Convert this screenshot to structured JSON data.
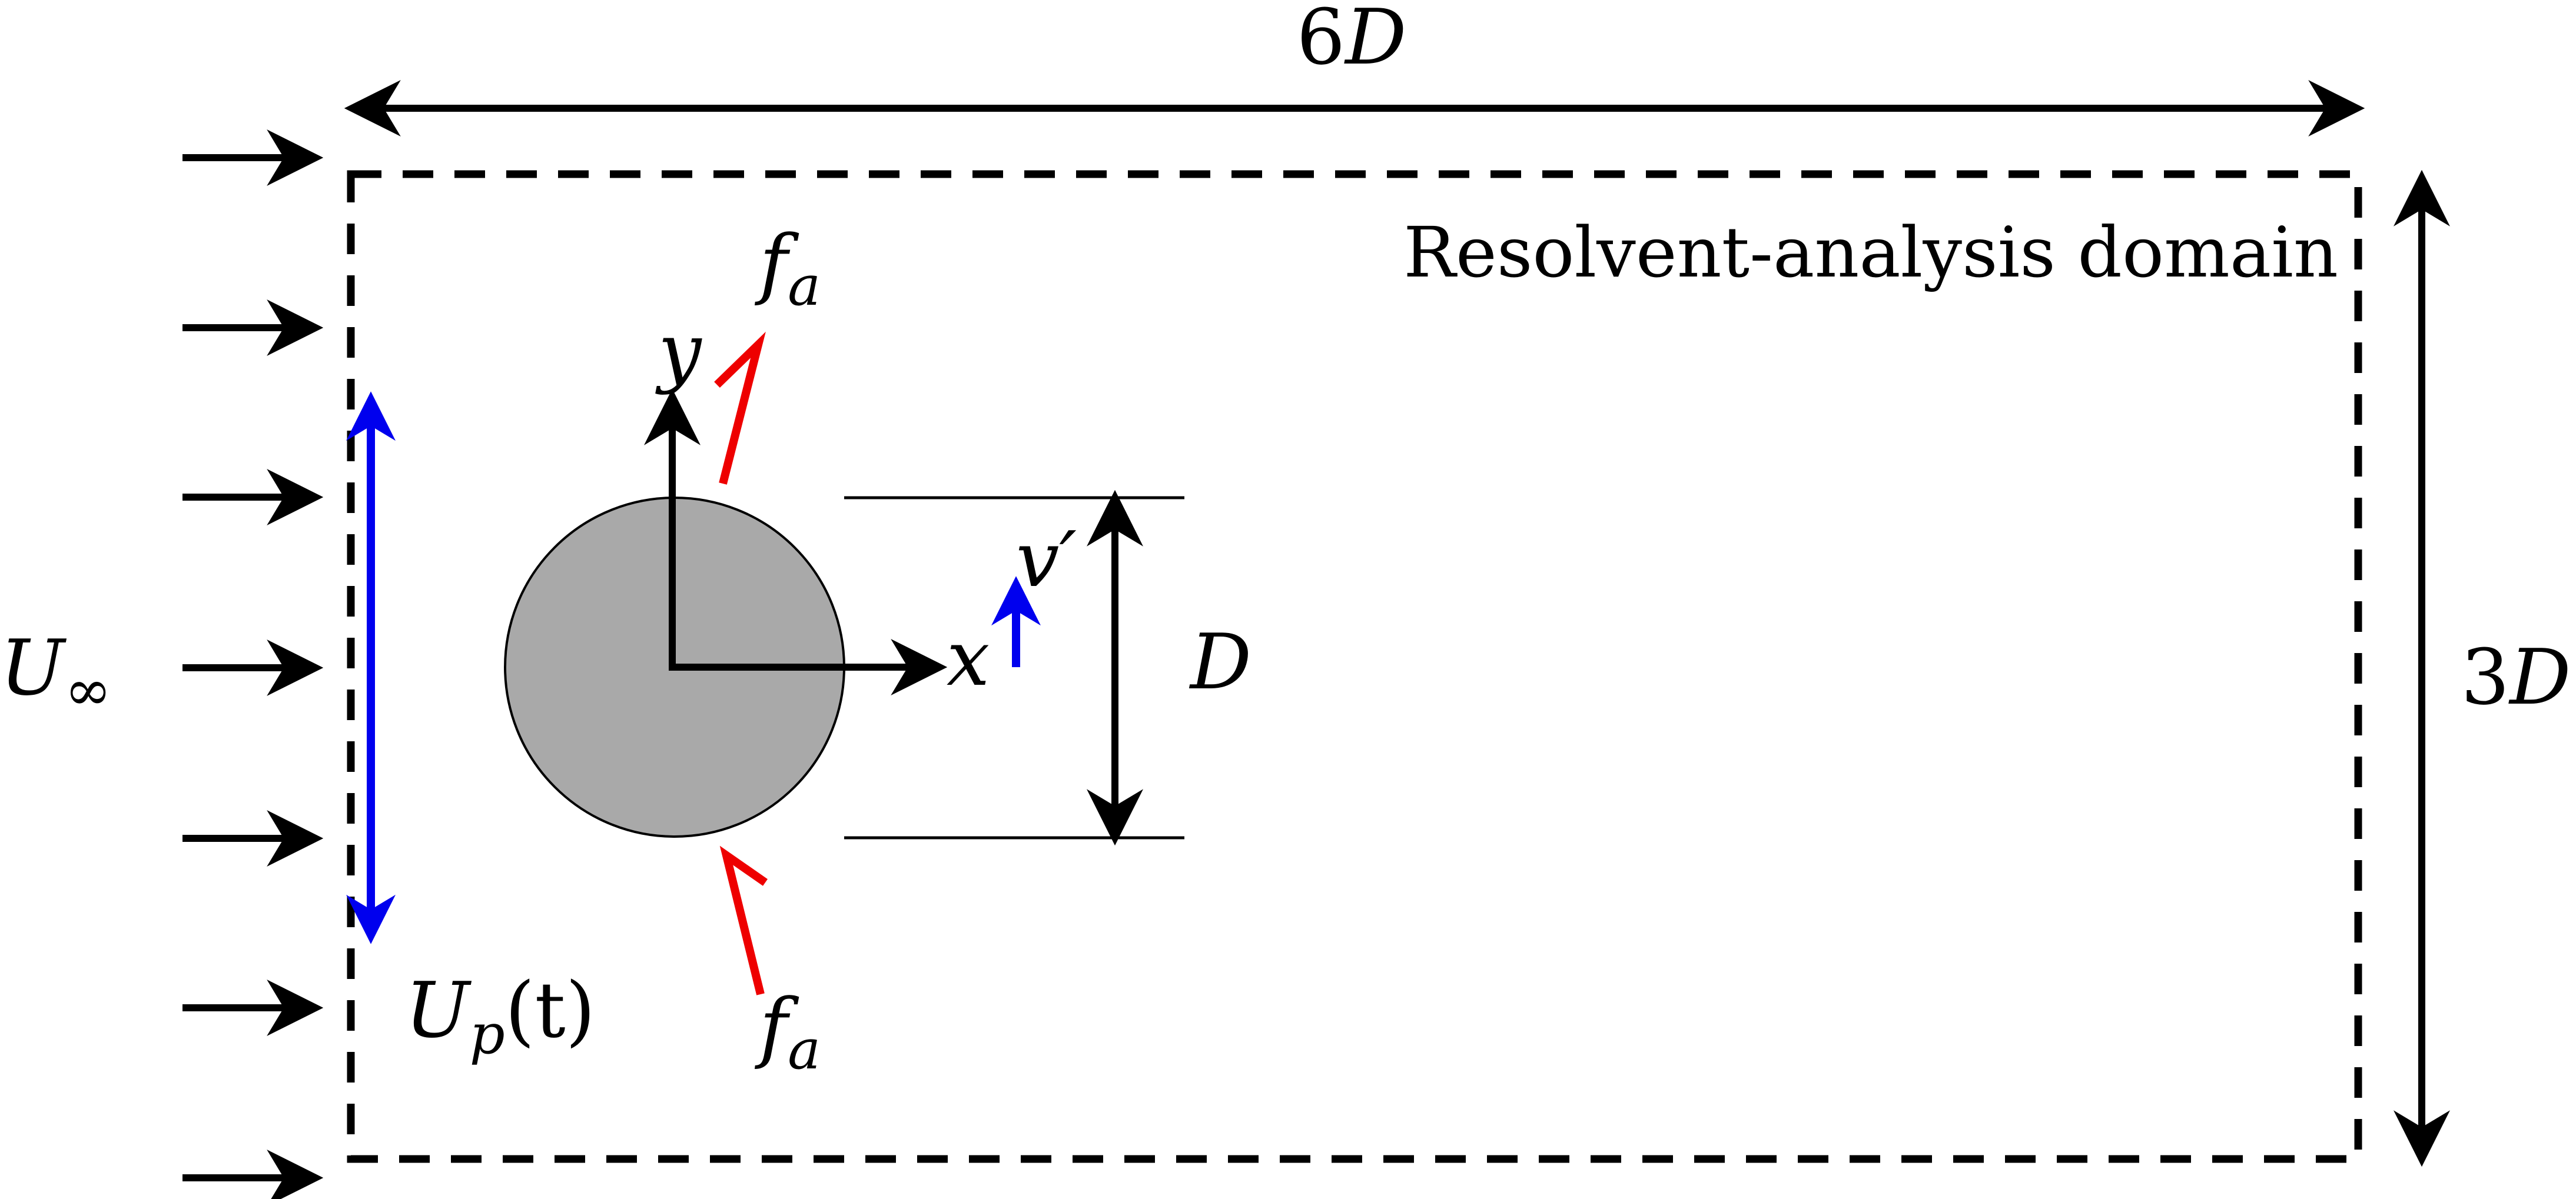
{
  "diagram": {
    "domain_label": "Resolvent-analysis domain",
    "width_label": {
      "num": "6",
      "sym": "D"
    },
    "height_label": {
      "num": "3",
      "sym": "D"
    },
    "diameter_label": "D",
    "freestream_label": {
      "sym": "U",
      "sub": "∞"
    },
    "actuator_velocity_label": {
      "sym": "U",
      "sub": "p",
      "arg": "(t)"
    },
    "forcing_label_top": {
      "sym": "f",
      "sub": "a"
    },
    "forcing_label_bottom": {
      "sym": "f",
      "sub": "a"
    },
    "axis_x_label": "x",
    "axis_y_label": "y",
    "perturbation_label": "v′",
    "colors": {
      "actuation": "#0000ee",
      "forcing": "#ee0000",
      "ink": "#000000",
      "cylinder_fill": "#a9a9a9"
    }
  }
}
